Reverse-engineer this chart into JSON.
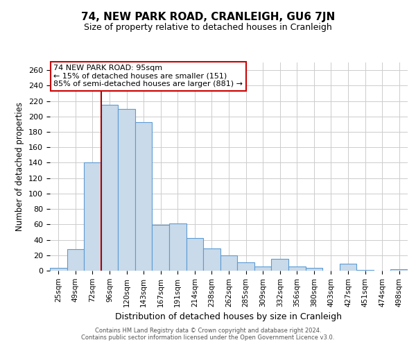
{
  "title": "74, NEW PARK ROAD, CRANLEIGH, GU6 7JN",
  "subtitle": "Size of property relative to detached houses in Cranleigh",
  "xlabel": "Distribution of detached houses by size in Cranleigh",
  "ylabel": "Number of detached properties",
  "bar_labels": [
    "25sqm",
    "49sqm",
    "72sqm",
    "96sqm",
    "120sqm",
    "143sqm",
    "167sqm",
    "191sqm",
    "214sqm",
    "238sqm",
    "262sqm",
    "285sqm",
    "309sqm",
    "332sqm",
    "356sqm",
    "380sqm",
    "403sqm",
    "427sqm",
    "451sqm",
    "474sqm",
    "498sqm"
  ],
  "bar_values": [
    4,
    28,
    140,
    215,
    210,
    193,
    59,
    61,
    42,
    29,
    20,
    11,
    5,
    15,
    5,
    4,
    0,
    9,
    1,
    0,
    2
  ],
  "bar_color": "#c9daea",
  "bar_edge_color": "#5b9bd5",
  "background_color": "#ffffff",
  "grid_color": "#cccccc",
  "vline_x_index": 3,
  "vline_color": "#aa0000",
  "annotation_text": "74 NEW PARK ROAD: 95sqm\n← 15% of detached houses are smaller (151)\n85% of semi-detached houses are larger (881) →",
  "annotation_box_edge_color": "#cc0000",
  "ylim": [
    0,
    270
  ],
  "yticks": [
    0,
    20,
    40,
    60,
    80,
    100,
    120,
    140,
    160,
    180,
    200,
    220,
    240,
    260
  ],
  "footer_line1": "Contains HM Land Registry data © Crown copyright and database right 2024.",
  "footer_line2": "Contains public sector information licensed under the Open Government Licence v3.0."
}
